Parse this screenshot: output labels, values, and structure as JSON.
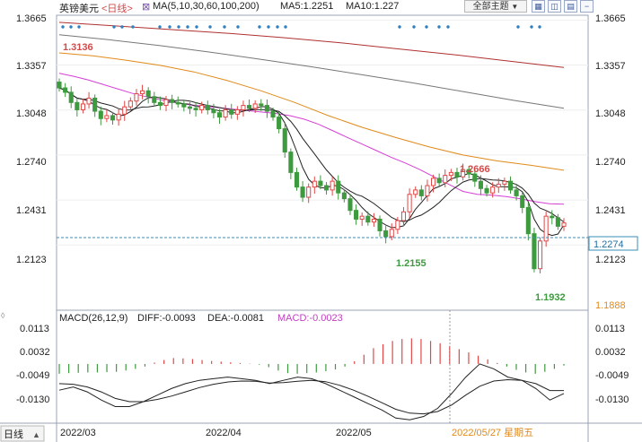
{
  "header": {
    "symbol": "英镑美元",
    "period_tag": "<日线>",
    "ma_label": "MA(5,10,30,60,100,200)",
    "ma5": "MA5:1.2251",
    "ma10": "MA10:1.227",
    "theme_button": "全部主题",
    "theme_arrow": "▼",
    "icon_buttons": [
      "grid-icon",
      "split-icon",
      "layout-icon",
      "minus-icon"
    ]
  },
  "price_axis": {
    "ticks": [
      "1.3665",
      "1.3357",
      "1.3048",
      "1.2740",
      "1.2431",
      "1.2123",
      "1.1888"
    ],
    "current_price": "1.2274"
  },
  "annotations": {
    "high_label": "1.3136",
    "mid_high_label": "1.2666",
    "low1_label": "1.2155",
    "low2_label": "1.1932"
  },
  "macd": {
    "label": "MACD(26,12,9)",
    "diff": "DIFF:-0.0093",
    "dea": "DEA:-0.0081",
    "macd": "MACD:-0.0023",
    "ticks": [
      "0.0113",
      "0.0032",
      "-0.0049",
      "-0.0130"
    ]
  },
  "footer": {
    "period_button": "日线",
    "x_ticks": [
      "2022/03",
      "2022/04",
      "2022/05"
    ],
    "crosshair_date": "2022/05/27 星期五"
  },
  "colors": {
    "up": "#e04848",
    "down": "#3e9a3e",
    "ma5": "#222222",
    "ma10": "#222222",
    "ma30": "#d63fd6",
    "ma60": "#e08a1a",
    "ma100": "#777777",
    "ma200": "#b03030",
    "dea": "#222222",
    "diff": "#222222"
  },
  "chart_data": {
    "type": "candlestick",
    "series_name": "英镑美元",
    "period": "daily",
    "y_range": [
      1.1888,
      1.3665
    ],
    "marked_values": {
      "high": 1.3136,
      "swing_high": 1.2666,
      "low_a": 1.2155,
      "low_b": 1.1932,
      "last": 1.2274
    },
    "closes": [
      1.32,
      1.317,
      1.31,
      1.305,
      1.309,
      1.313,
      1.304,
      1.299,
      1.301,
      1.298,
      1.302,
      1.307,
      1.311,
      1.316,
      1.318,
      1.314,
      1.31,
      1.308,
      1.312,
      1.31,
      1.309,
      1.307,
      1.306,
      1.305,
      1.308,
      1.305,
      1.303,
      1.3,
      1.305,
      1.302,
      1.305,
      1.308,
      1.306,
      1.309,
      1.308,
      1.304,
      1.3,
      1.292,
      1.276,
      1.262,
      1.252,
      1.245,
      1.252,
      1.256,
      1.253,
      1.25,
      1.256,
      1.248,
      1.244,
      1.236,
      1.23,
      1.232,
      1.228,
      1.23,
      1.222,
      1.218,
      1.223,
      1.229,
      1.235,
      1.247,
      1.25,
      1.246,
      1.253,
      1.258,
      1.255,
      1.26,
      1.262,
      1.259,
      1.264,
      1.261,
      1.256,
      1.251,
      1.248,
      1.252,
      1.254,
      1.256,
      1.25,
      1.246,
      1.238,
      1.22,
      1.196,
      1.215,
      1.232,
      1.231,
      1.2251,
      1.2274
    ],
    "diff_values": [
      -0.008,
      -0.007,
      -0.0085,
      -0.011,
      -0.013,
      -0.013,
      -0.0115,
      -0.0095,
      -0.0075,
      -0.006,
      -0.005,
      -0.0045,
      -0.004,
      -0.0045,
      -0.005,
      -0.006,
      -0.005,
      -0.004,
      -0.0045,
      -0.006,
      -0.008,
      -0.01,
      -0.012,
      -0.014,
      -0.0165,
      -0.017,
      -0.016,
      -0.0135,
      -0.009,
      -0.004,
      0.0,
      -0.0015,
      -0.004,
      -0.005,
      -0.0075,
      -0.011,
      -0.009
    ],
    "dea_values": [
      -0.006,
      -0.0062,
      -0.007,
      -0.0085,
      -0.0105,
      -0.0115,
      -0.0115,
      -0.0108,
      -0.0098,
      -0.0085,
      -0.0072,
      -0.0062,
      -0.0055,
      -0.0052,
      -0.0053,
      -0.0058,
      -0.0057,
      -0.0053,
      -0.005,
      -0.0054,
      -0.0065,
      -0.008,
      -0.0098,
      -0.0118,
      -0.0138,
      -0.015,
      -0.0152,
      -0.0145,
      -0.0125,
      -0.0095,
      -0.0068,
      -0.0052,
      -0.0048,
      -0.005,
      -0.006,
      -0.0081,
      -0.0081
    ],
    "macd_bars": [
      -0.003,
      -0.0028,
      -0.0027,
      -0.0026,
      -0.0026,
      -0.0025,
      -0.0024,
      -0.002,
      -0.0015,
      -0.0008,
      0.0004,
      0.0012,
      0.0018,
      0.0017,
      0.0015,
      0.0012,
      0.0009,
      0.0007,
      0.0005,
      0.0003,
      0.0001,
      -0.0002,
      -0.001,
      -0.002,
      -0.0028,
      -0.003,
      -0.0028,
      -0.0026,
      -0.0022,
      -0.0017,
      -0.0008,
      0.0008,
      0.0028,
      0.0048,
      0.006,
      0.007,
      0.0076,
      0.0078,
      0.0076,
      0.007,
      0.0063,
      0.0055,
      0.0045,
      0.0035,
      0.0025,
      0.0014,
      0.0003,
      -0.0008,
      -0.0018,
      -0.0026,
      -0.003,
      -0.0024,
      -0.0015,
      -0.0005
    ],
    "ma30": [
      1.33,
      1.328,
      1.3255,
      1.3225,
      1.3195,
      1.3165,
      1.314,
      1.312,
      1.31,
      1.3085,
      1.3075,
      1.3065,
      1.3055,
      1.3045,
      1.3035,
      1.3025,
      1.301,
      1.2985,
      1.295,
      1.2905,
      1.286,
      1.2815,
      1.277,
      1.2725,
      1.2685,
      1.264,
      1.259,
      1.254,
      1.249,
      1.247,
      1.2465,
      1.2455,
      1.244,
      1.242,
      1.2405,
      1.2402
    ],
    "ma60": [
      1.344,
      1.342,
      1.339,
      1.3355,
      1.331,
      1.325,
      1.318,
      1.31,
      1.301,
      1.293,
      1.286,
      1.2795,
      1.274,
      1.27,
      1.267,
      1.2635
    ],
    "ma100": [
      1.3565,
      1.353,
      1.349,
      1.3445,
      1.3395,
      1.3345,
      1.329,
      1.3235,
      1.3175,
      1.3115,
      1.306
    ],
    "ma200": [
      1.365,
      1.3625,
      1.36,
      1.3575,
      1.3545,
      1.351,
      1.347,
      1.343,
      1.3385,
      1.334
    ]
  }
}
